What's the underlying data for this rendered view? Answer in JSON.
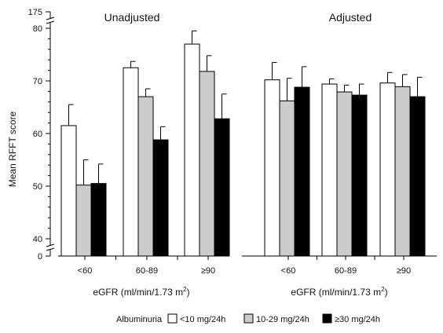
{
  "chart_data": {
    "type": "bar",
    "ylabel": "Mean RFFT score",
    "xlabel": "eGFR (ml/min/1.73 m",
    "xlabel_sup": "2",
    "xlabel_close": ")",
    "y_axis_break": true,
    "y_segments": [
      {
        "range": [
          38,
          80
        ],
        "ticks": [
          40,
          50,
          60,
          70,
          80
        ]
      },
      {
        "below_break": 0,
        "above_break": 175
      }
    ],
    "categories": [
      "<60",
      "60-89",
      "≥90"
    ],
    "legend": {
      "title": "Albuminuria",
      "placement": "bottom",
      "entries": [
        {
          "label": "<10 mg/24h",
          "color": "#ffffff"
        },
        {
          "label": "10-29 mg/24h",
          "color": "#cccccc"
        },
        {
          "label": "≥30 mg/24h",
          "color": "#000000"
        }
      ]
    },
    "panels": [
      {
        "title": "Unadjusted",
        "series": [
          {
            "name": "<10 mg/24h",
            "values": [
              61.5,
              72.5,
              77.0
            ],
            "errors": [
              4.0,
              1.2,
              2.5
            ]
          },
          {
            "name": "10-29 mg/24h",
            "values": [
              50.2,
              67.0,
              71.8
            ],
            "errors": [
              4.8,
              1.5,
              3.0
            ]
          },
          {
            "name": "≥30 mg/24h",
            "values": [
              50.5,
              58.8,
              62.8
            ],
            "errors": [
              3.7,
              2.5,
              4.7
            ]
          }
        ]
      },
      {
        "title": "Adjusted",
        "series": [
          {
            "name": "<10 mg/24h",
            "values": [
              70.2,
              69.4,
              69.6
            ],
            "errors": [
              3.3,
              1.0,
              2.0
            ]
          },
          {
            "name": "10-29 mg/24h",
            "values": [
              66.2,
              67.9,
              68.9
            ],
            "errors": [
              4.3,
              1.3,
              2.3
            ]
          },
          {
            "name": "≥30 mg/24h",
            "values": [
              68.8,
              67.3,
              67.0
            ],
            "errors": [
              3.9,
              2.1,
              3.7
            ]
          }
        ]
      }
    ],
    "colors": {
      "series": [
        "#ffffff",
        "#cccccc",
        "#000000"
      ],
      "stroke": "#000000"
    }
  }
}
